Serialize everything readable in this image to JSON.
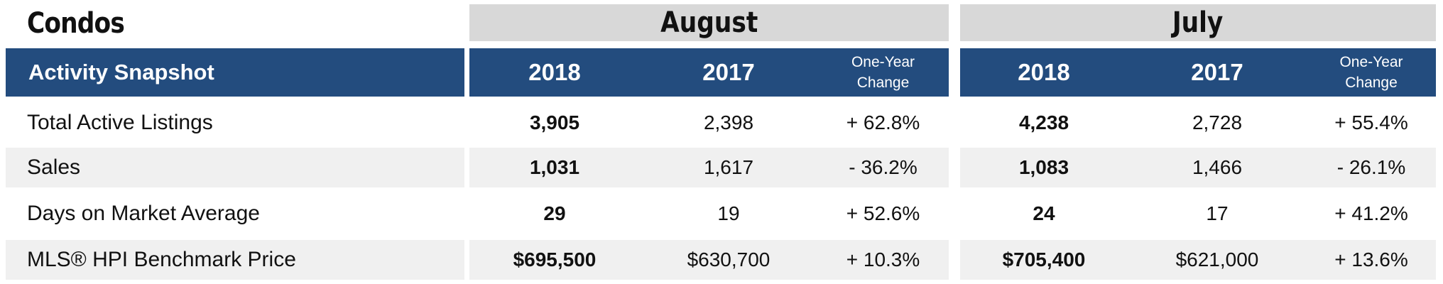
{
  "title": "Condos",
  "months": [
    "August",
    "July"
  ],
  "header": {
    "label": "Activity Snapshot",
    "year_current": "2018",
    "year_previous": "2017",
    "change_line1": "One-Year",
    "change_line2": "Change"
  },
  "rows": [
    {
      "label": "Total Active Listings",
      "aug_2018": "3,905",
      "aug_2017": "2,398",
      "aug_change": "+ 62.8%",
      "jul_2018": "4,238",
      "jul_2017": "2,728",
      "jul_change": "+ 55.4%"
    },
    {
      "label": "Sales",
      "aug_2018": "1,031",
      "aug_2017": "1,617",
      "aug_change": "- 36.2%",
      "jul_2018": "1,083",
      "jul_2017": "1,466",
      "jul_change": "- 26.1%"
    },
    {
      "label": "Days on Market Average",
      "aug_2018": "29",
      "aug_2017": "19",
      "aug_change": "+ 52.6%",
      "jul_2018": "24",
      "jul_2017": "17",
      "jul_change": "+ 41.2%"
    },
    {
      "label": "MLS® HPI Benchmark Price",
      "aug_2018": "$695,500",
      "aug_2017": "$630,700",
      "aug_change": "+ 10.3%",
      "jul_2018": "$705,400",
      "jul_2017": "$621,000",
      "jul_change": "+ 13.6%"
    }
  ],
  "colors": {
    "header_blue": "#234c7e",
    "month_band": "#d8d8d8",
    "row_stripe": "#f0f0f0"
  }
}
